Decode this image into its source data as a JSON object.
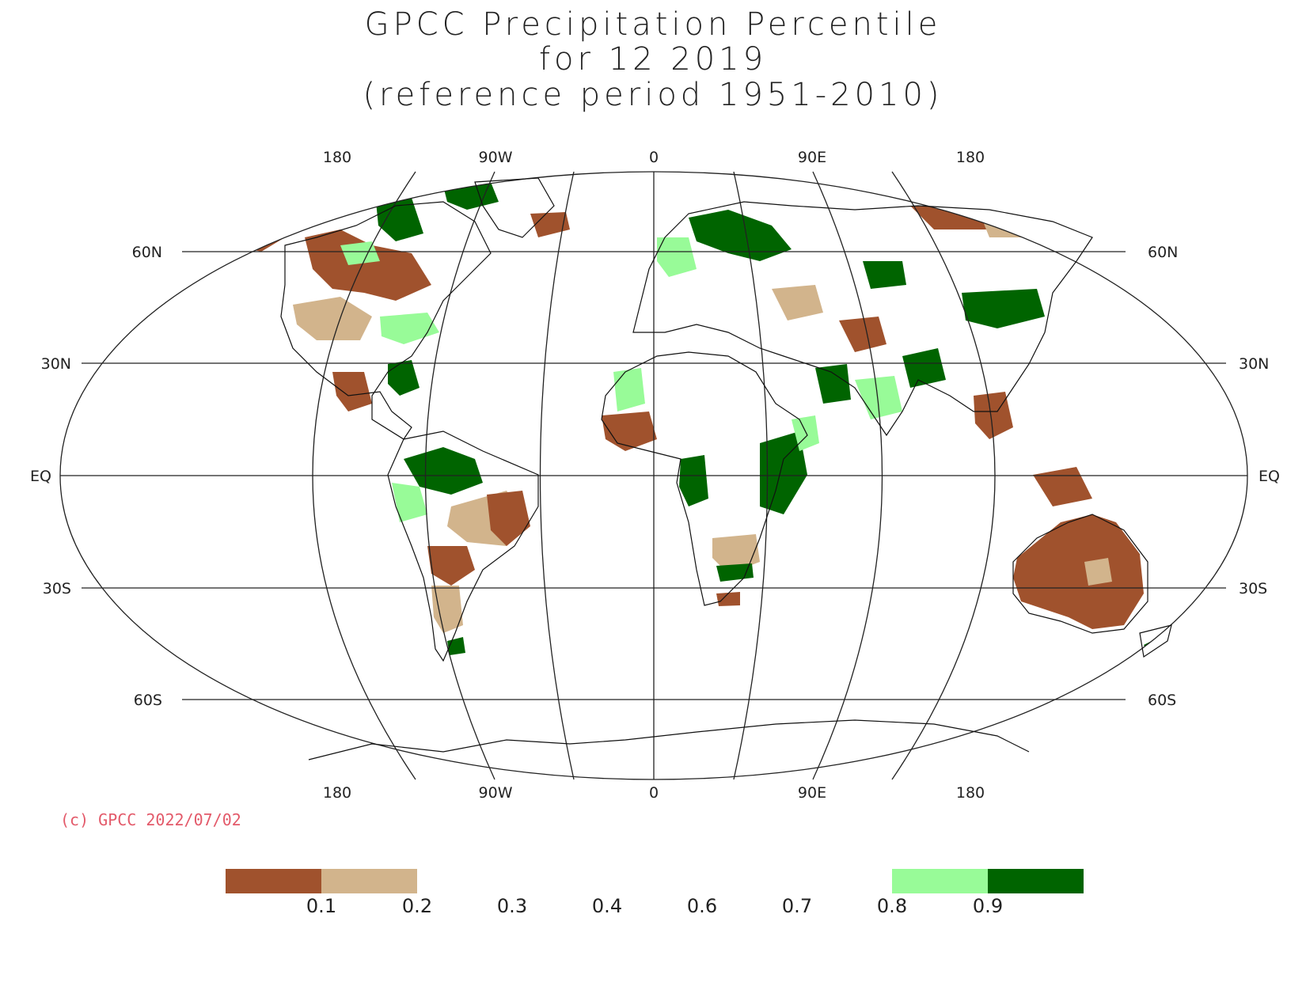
{
  "title": {
    "line1": "GPCC Precipitation Percentile",
    "line2": "for 12 2019",
    "line3": "(reference period 1951-2010)"
  },
  "map": {
    "projection": "Robinson",
    "longitude_labels": [
      "180",
      "90W",
      "0",
      "90E",
      "180"
    ],
    "latitude_labels_left": [
      "60N",
      "30N",
      "EQ",
      "30S",
      "60S"
    ],
    "latitude_labels_right": [
      "60N",
      "30N",
      "EQ",
      "30S",
      "60S"
    ]
  },
  "credit": "(c) GPCC 2022/07/02",
  "legend": {
    "ticks": [
      "0.1",
      "0.2",
      "0.3",
      "0.4",
      "0.6",
      "0.7",
      "0.8",
      "0.9"
    ],
    "bins": [
      {
        "range": "< 0.1",
        "color": "#a0522d"
      },
      {
        "range": "0.1 - 0.2",
        "color": "#d2b48c"
      },
      {
        "range": "0.8 - 0.9",
        "color": "#98fb98"
      },
      {
        "range": "> 0.9",
        "color": "#006400"
      }
    ]
  }
}
